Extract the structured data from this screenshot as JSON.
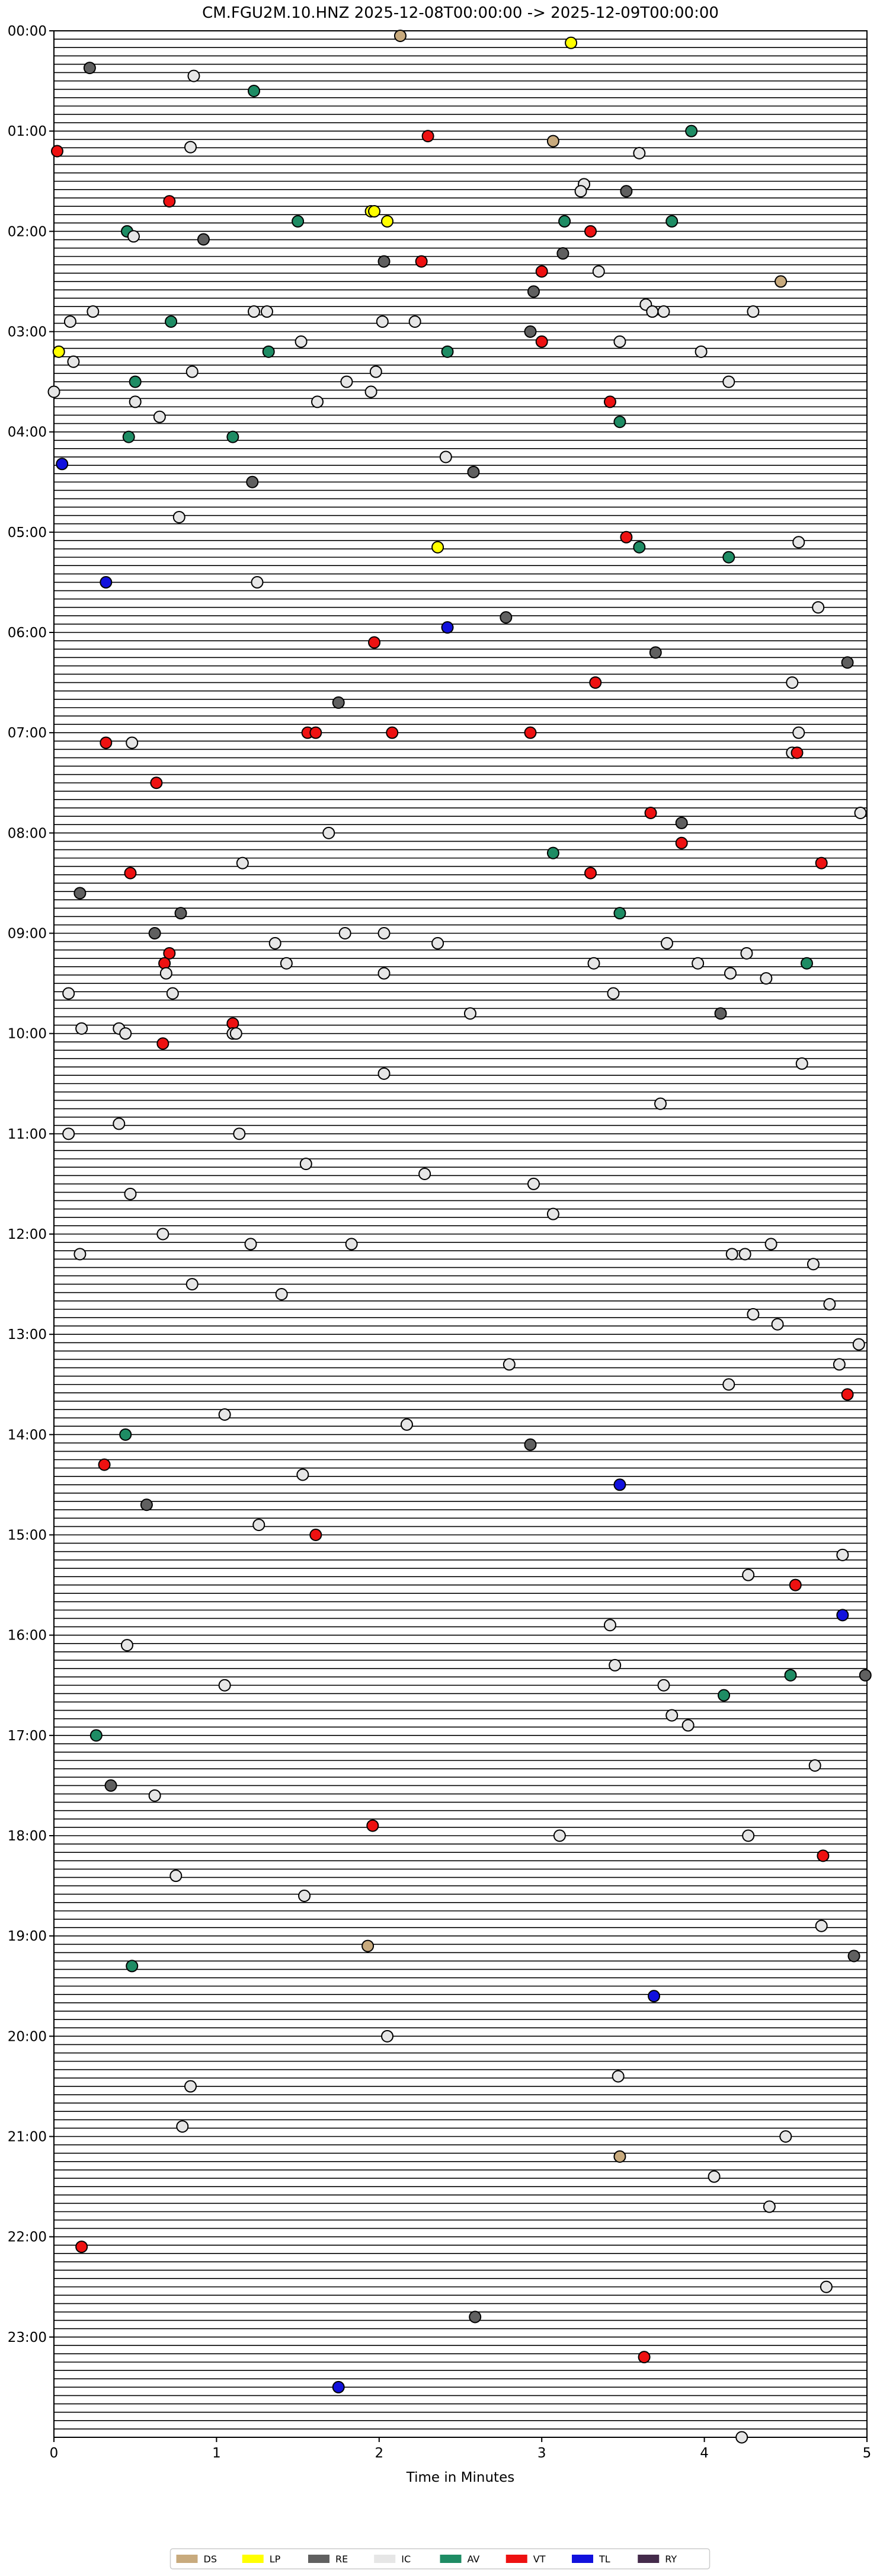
{
  "chart_data": {
    "type": "scatter",
    "title": "CM.FGU2M.10.HNZ  2025-12-08T00:00:00 -> 2025-12-09T00:00:00",
    "xlabel": "Time in Minutes",
    "ylabel": "",
    "xlim": [
      0,
      5
    ],
    "xticks": [
      0,
      1,
      2,
      3,
      4,
      5
    ],
    "yticks": [
      "00:00",
      "01:00",
      "02:00",
      "03:00",
      "04:00",
      "05:00",
      "06:00",
      "07:00",
      "08:00",
      "09:00",
      "10:00",
      "11:00",
      "12:00",
      "13:00",
      "14:00",
      "15:00",
      "16:00",
      "17:00",
      "18:00",
      "19:00",
      "20:00",
      "21:00",
      "22:00",
      "23:00"
    ],
    "rows_per_hour": 12,
    "grid": true,
    "legend_position": "bottom",
    "legend": [
      {
        "code": "DS",
        "color": "#C8AA7D"
      },
      {
        "code": "LP",
        "color": "#FFFF00"
      },
      {
        "code": "RE",
        "color": "#606060"
      },
      {
        "code": "IC",
        "color": "#E6E6E6"
      },
      {
        "code": "AV",
        "color": "#1E8C64"
      },
      {
        "code": "VT",
        "color": "#EE1111"
      },
      {
        "code": "TL",
        "color": "#1111DD"
      },
      {
        "code": "RY",
        "color": "#442B4B"
      }
    ],
    "events": [
      [
        0.05,
        2.13,
        "DS"
      ],
      [
        0.12,
        3.18,
        "LP"
      ],
      [
        0.37,
        0.22,
        "RE"
      ],
      [
        0.45,
        0.86,
        "IC"
      ],
      [
        0.6,
        1.23,
        "AV"
      ],
      [
        1.0,
        3.92,
        "AV"
      ],
      [
        1.05,
        2.3,
        "VT"
      ],
      [
        1.1,
        3.07,
        "DS"
      ],
      [
        1.16,
        0.84,
        "IC"
      ],
      [
        1.2,
        0.02,
        "VT"
      ],
      [
        1.22,
        3.6,
        "IC"
      ],
      [
        1.53,
        3.26,
        "IC"
      ],
      [
        1.6,
        3.24,
        "IC"
      ],
      [
        1.6,
        3.52,
        "RE"
      ],
      [
        1.7,
        0.71,
        "VT"
      ],
      [
        1.8,
        1.95,
        "LP"
      ],
      [
        1.8,
        1.97,
        "LP"
      ],
      [
        1.9,
        1.5,
        "AV"
      ],
      [
        1.9,
        2.05,
        "LP"
      ],
      [
        1.9,
        3.14,
        "AV"
      ],
      [
        1.9,
        3.8,
        "AV"
      ],
      [
        2.0,
        0.45,
        "AV"
      ],
      [
        2.0,
        3.3,
        "VT"
      ],
      [
        2.05,
        0.49,
        "IC"
      ],
      [
        2.08,
        0.92,
        "RE"
      ],
      [
        2.22,
        3.13,
        "RE"
      ],
      [
        2.3,
        2.03,
        "RE"
      ],
      [
        2.3,
        2.26,
        "VT"
      ],
      [
        2.4,
        3.0,
        "VT"
      ],
      [
        2.4,
        3.35,
        "IC"
      ],
      [
        2.5,
        4.47,
        "DS"
      ],
      [
        2.6,
        2.95,
        "RE"
      ],
      [
        2.73,
        3.64,
        "IC"
      ],
      [
        2.8,
        0.24,
        "IC"
      ],
      [
        2.8,
        1.23,
        "IC"
      ],
      [
        2.8,
        1.31,
        "IC"
      ],
      [
        2.8,
        3.68,
        "IC"
      ],
      [
        2.8,
        3.75,
        "IC"
      ],
      [
        2.8,
        4.3,
        "IC"
      ],
      [
        2.9,
        0.1,
        "IC"
      ],
      [
        2.9,
        0.72,
        "AV"
      ],
      [
        2.9,
        2.02,
        "IC"
      ],
      [
        2.9,
        2.22,
        "IC"
      ],
      [
        3.0,
        2.93,
        "RE"
      ],
      [
        3.1,
        1.52,
        "IC"
      ],
      [
        3.1,
        3.0,
        "VT"
      ],
      [
        3.1,
        3.48,
        "IC"
      ],
      [
        3.2,
        0.03,
        "LP"
      ],
      [
        3.2,
        1.32,
        "AV"
      ],
      [
        3.2,
        2.42,
        "AV"
      ],
      [
        3.2,
        3.98,
        "IC"
      ],
      [
        3.3,
        0.12,
        "IC"
      ],
      [
        3.4,
        0.85,
        "IC"
      ],
      [
        3.4,
        1.98,
        "IC"
      ],
      [
        3.5,
        0.5,
        "AV"
      ],
      [
        3.5,
        1.8,
        "IC"
      ],
      [
        3.5,
        4.15,
        "IC"
      ],
      [
        3.6,
        0.0,
        "IC"
      ],
      [
        3.6,
        1.95,
        "IC"
      ],
      [
        3.7,
        0.5,
        "IC"
      ],
      [
        3.7,
        1.62,
        "IC"
      ],
      [
        3.7,
        3.42,
        "VT"
      ],
      [
        3.85,
        0.65,
        "IC"
      ],
      [
        3.9,
        3.48,
        "AV"
      ],
      [
        4.05,
        0.46,
        "AV"
      ],
      [
        4.05,
        1.1,
        "AV"
      ],
      [
        4.25,
        2.41,
        "IC"
      ],
      [
        4.32,
        0.05,
        "TL"
      ],
      [
        4.4,
        2.58,
        "RE"
      ],
      [
        4.5,
        1.22,
        "RE"
      ],
      [
        4.85,
        0.77,
        "IC"
      ],
      [
        5.05,
        3.52,
        "VT"
      ],
      [
        5.15,
        2.36,
        "LP"
      ],
      [
        5.15,
        3.6,
        "AV"
      ],
      [
        5.1,
        4.58,
        "IC"
      ],
      [
        5.25,
        4.15,
        "AV"
      ],
      [
        5.5,
        0.32,
        "TL"
      ],
      [
        5.5,
        1.25,
        "IC"
      ],
      [
        5.75,
        4.7,
        "IC"
      ],
      [
        5.85,
        2.78,
        "RE"
      ],
      [
        5.95,
        2.42,
        "TL"
      ],
      [
        6.1,
        1.97,
        "VT"
      ],
      [
        6.2,
        3.7,
        "RE"
      ],
      [
        6.3,
        4.88,
        "RE"
      ],
      [
        6.5,
        3.33,
        "VT"
      ],
      [
        6.5,
        4.54,
        "IC"
      ],
      [
        6.7,
        1.75,
        "RE"
      ],
      [
        7.0,
        1.56,
        "VT"
      ],
      [
        7.0,
        1.61,
        "VT"
      ],
      [
        7.0,
        2.08,
        "VT"
      ],
      [
        7.0,
        2.93,
        "VT"
      ],
      [
        7.0,
        4.58,
        "IC"
      ],
      [
        7.1,
        0.32,
        "VT"
      ],
      [
        7.1,
        0.48,
        "IC"
      ],
      [
        7.2,
        4.54,
        "IC"
      ],
      [
        7.2,
        4.57,
        "VT"
      ],
      [
        7.5,
        0.63,
        "VT"
      ],
      [
        7.8,
        3.67,
        "VT"
      ],
      [
        7.8,
        4.96,
        "IC"
      ],
      [
        7.9,
        3.86,
        "RE"
      ],
      [
        8.0,
        1.69,
        "IC"
      ],
      [
        8.1,
        3.86,
        "VT"
      ],
      [
        8.2,
        3.07,
        "AV"
      ],
      [
        8.3,
        1.16,
        "IC"
      ],
      [
        8.3,
        4.72,
        "VT"
      ],
      [
        8.4,
        0.47,
        "VT"
      ],
      [
        8.4,
        3.3,
        "VT"
      ],
      [
        8.6,
        0.16,
        "RE"
      ],
      [
        8.8,
        0.78,
        "RE"
      ],
      [
        8.8,
        3.48,
        "AV"
      ],
      [
        9.0,
        0.62,
        "RE"
      ],
      [
        9.0,
        1.79,
        "IC"
      ],
      [
        9.0,
        2.03,
        "IC"
      ],
      [
        9.1,
        1.36,
        "IC"
      ],
      [
        9.1,
        2.36,
        "IC"
      ],
      [
        9.1,
        3.77,
        "IC"
      ],
      [
        9.2,
        0.71,
        "VT"
      ],
      [
        9.2,
        4.26,
        "IC"
      ],
      [
        9.3,
        0.68,
        "VT"
      ],
      [
        9.3,
        1.43,
        "IC"
      ],
      [
        9.3,
        3.32,
        "IC"
      ],
      [
        9.3,
        3.96,
        "IC"
      ],
      [
        9.3,
        4.63,
        "AV"
      ],
      [
        9.4,
        0.69,
        "IC"
      ],
      [
        9.4,
        2.03,
        "IC"
      ],
      [
        9.4,
        4.16,
        "IC"
      ],
      [
        9.45,
        4.38,
        "IC"
      ],
      [
        9.6,
        0.09,
        "IC"
      ],
      [
        9.6,
        0.73,
        "IC"
      ],
      [
        9.6,
        3.44,
        "IC"
      ],
      [
        9.8,
        2.56,
        "IC"
      ],
      [
        9.8,
        4.1,
        "RE"
      ],
      [
        9.9,
        1.1,
        "VT"
      ],
      [
        9.95,
        0.4,
        "IC"
      ],
      [
        9.95,
        0.17,
        "IC"
      ],
      [
        10.0,
        0.44,
        "IC"
      ],
      [
        10.0,
        1.1,
        "IC"
      ],
      [
        10.1,
        0.67,
        "VT"
      ],
      [
        10.0,
        1.12,
        "IC"
      ],
      [
        10.3,
        4.6,
        "IC"
      ],
      [
        10.4,
        2.03,
        "IC"
      ],
      [
        10.7,
        3.73,
        "IC"
      ],
      [
        10.9,
        0.4,
        "IC"
      ],
      [
        11.0,
        0.09,
        "IC"
      ],
      [
        11.0,
        1.14,
        "IC"
      ],
      [
        11.3,
        1.55,
        "IC"
      ],
      [
        11.4,
        2.28,
        "IC"
      ],
      [
        11.5,
        2.95,
        "IC"
      ],
      [
        11.6,
        0.47,
        "IC"
      ],
      [
        11.8,
        3.07,
        "IC"
      ],
      [
        12.0,
        0.67,
        "IC"
      ],
      [
        12.1,
        1.21,
        "IC"
      ],
      [
        12.1,
        1.83,
        "IC"
      ],
      [
        12.1,
        4.41,
        "IC"
      ],
      [
        12.2,
        0.16,
        "IC"
      ],
      [
        12.2,
        4.17,
        "IC"
      ],
      [
        12.2,
        4.25,
        "IC"
      ],
      [
        12.3,
        4.67,
        "IC"
      ],
      [
        12.5,
        0.85,
        "IC"
      ],
      [
        12.6,
        1.4,
        "IC"
      ],
      [
        12.7,
        4.77,
        "IC"
      ],
      [
        12.8,
        4.3,
        "IC"
      ],
      [
        12.9,
        4.45,
        "IC"
      ],
      [
        13.1,
        4.95,
        "IC"
      ],
      [
        13.3,
        2.8,
        "IC"
      ],
      [
        13.3,
        4.83,
        "IC"
      ],
      [
        13.5,
        4.15,
        "IC"
      ],
      [
        13.6,
        4.88,
        "VT"
      ],
      [
        13.8,
        1.05,
        "IC"
      ],
      [
        13.9,
        2.17,
        "IC"
      ],
      [
        14.0,
        0.44,
        "AV"
      ],
      [
        14.1,
        2.93,
        "RE"
      ],
      [
        14.3,
        0.31,
        "VT"
      ],
      [
        14.4,
        1.53,
        "IC"
      ],
      [
        14.5,
        3.48,
        "TL"
      ],
      [
        14.7,
        0.57,
        "RE"
      ],
      [
        14.9,
        1.26,
        "IC"
      ],
      [
        15.0,
        1.61,
        "VT"
      ],
      [
        15.2,
        4.85,
        "IC"
      ],
      [
        15.4,
        4.27,
        "IC"
      ],
      [
        15.5,
        4.56,
        "VT"
      ],
      [
        15.8,
        4.85,
        "TL"
      ],
      [
        15.9,
        3.42,
        "IC"
      ],
      [
        16.1,
        0.45,
        "IC"
      ],
      [
        16.3,
        3.45,
        "IC"
      ],
      [
        16.4,
        4.53,
        "AV"
      ],
      [
        16.4,
        4.99,
        "RE"
      ],
      [
        16.5,
        1.05,
        "IC"
      ],
      [
        16.5,
        3.75,
        "IC"
      ],
      [
        16.6,
        4.12,
        "AV"
      ],
      [
        16.8,
        3.8,
        "IC"
      ],
      [
        16.9,
        3.9,
        "IC"
      ],
      [
        17.0,
        0.26,
        "AV"
      ],
      [
        17.3,
        4.68,
        "IC"
      ],
      [
        17.5,
        0.35,
        "RE"
      ],
      [
        17.6,
        0.62,
        "IC"
      ],
      [
        17.9,
        1.96,
        "VT"
      ],
      [
        18.0,
        3.11,
        "IC"
      ],
      [
        18.0,
        4.27,
        "IC"
      ],
      [
        18.2,
        4.73,
        "VT"
      ],
      [
        18.4,
        0.75,
        "IC"
      ],
      [
        18.6,
        1.54,
        "IC"
      ],
      [
        18.9,
        4.72,
        "IC"
      ],
      [
        19.1,
        1.93,
        "DS"
      ],
      [
        19.2,
        4.92,
        "RE"
      ],
      [
        19.3,
        0.48,
        "AV"
      ],
      [
        19.6,
        3.69,
        "TL"
      ],
      [
        20.0,
        2.05,
        "IC"
      ],
      [
        20.4,
        3.47,
        "IC"
      ],
      [
        20.5,
        0.84,
        "IC"
      ],
      [
        20.9,
        0.79,
        "IC"
      ],
      [
        21.0,
        4.5,
        "IC"
      ],
      [
        21.2,
        3.48,
        "DS"
      ],
      [
        21.4,
        4.06,
        "IC"
      ],
      [
        21.7,
        4.4,
        "IC"
      ],
      [
        22.1,
        0.17,
        "VT"
      ],
      [
        22.5,
        4.75,
        "IC"
      ],
      [
        22.8,
        2.59,
        "RE"
      ],
      [
        23.2,
        3.63,
        "VT"
      ],
      [
        23.5,
        1.75,
        "TL"
      ],
      [
        24.0,
        4.23,
        "IC"
      ]
    ]
  }
}
